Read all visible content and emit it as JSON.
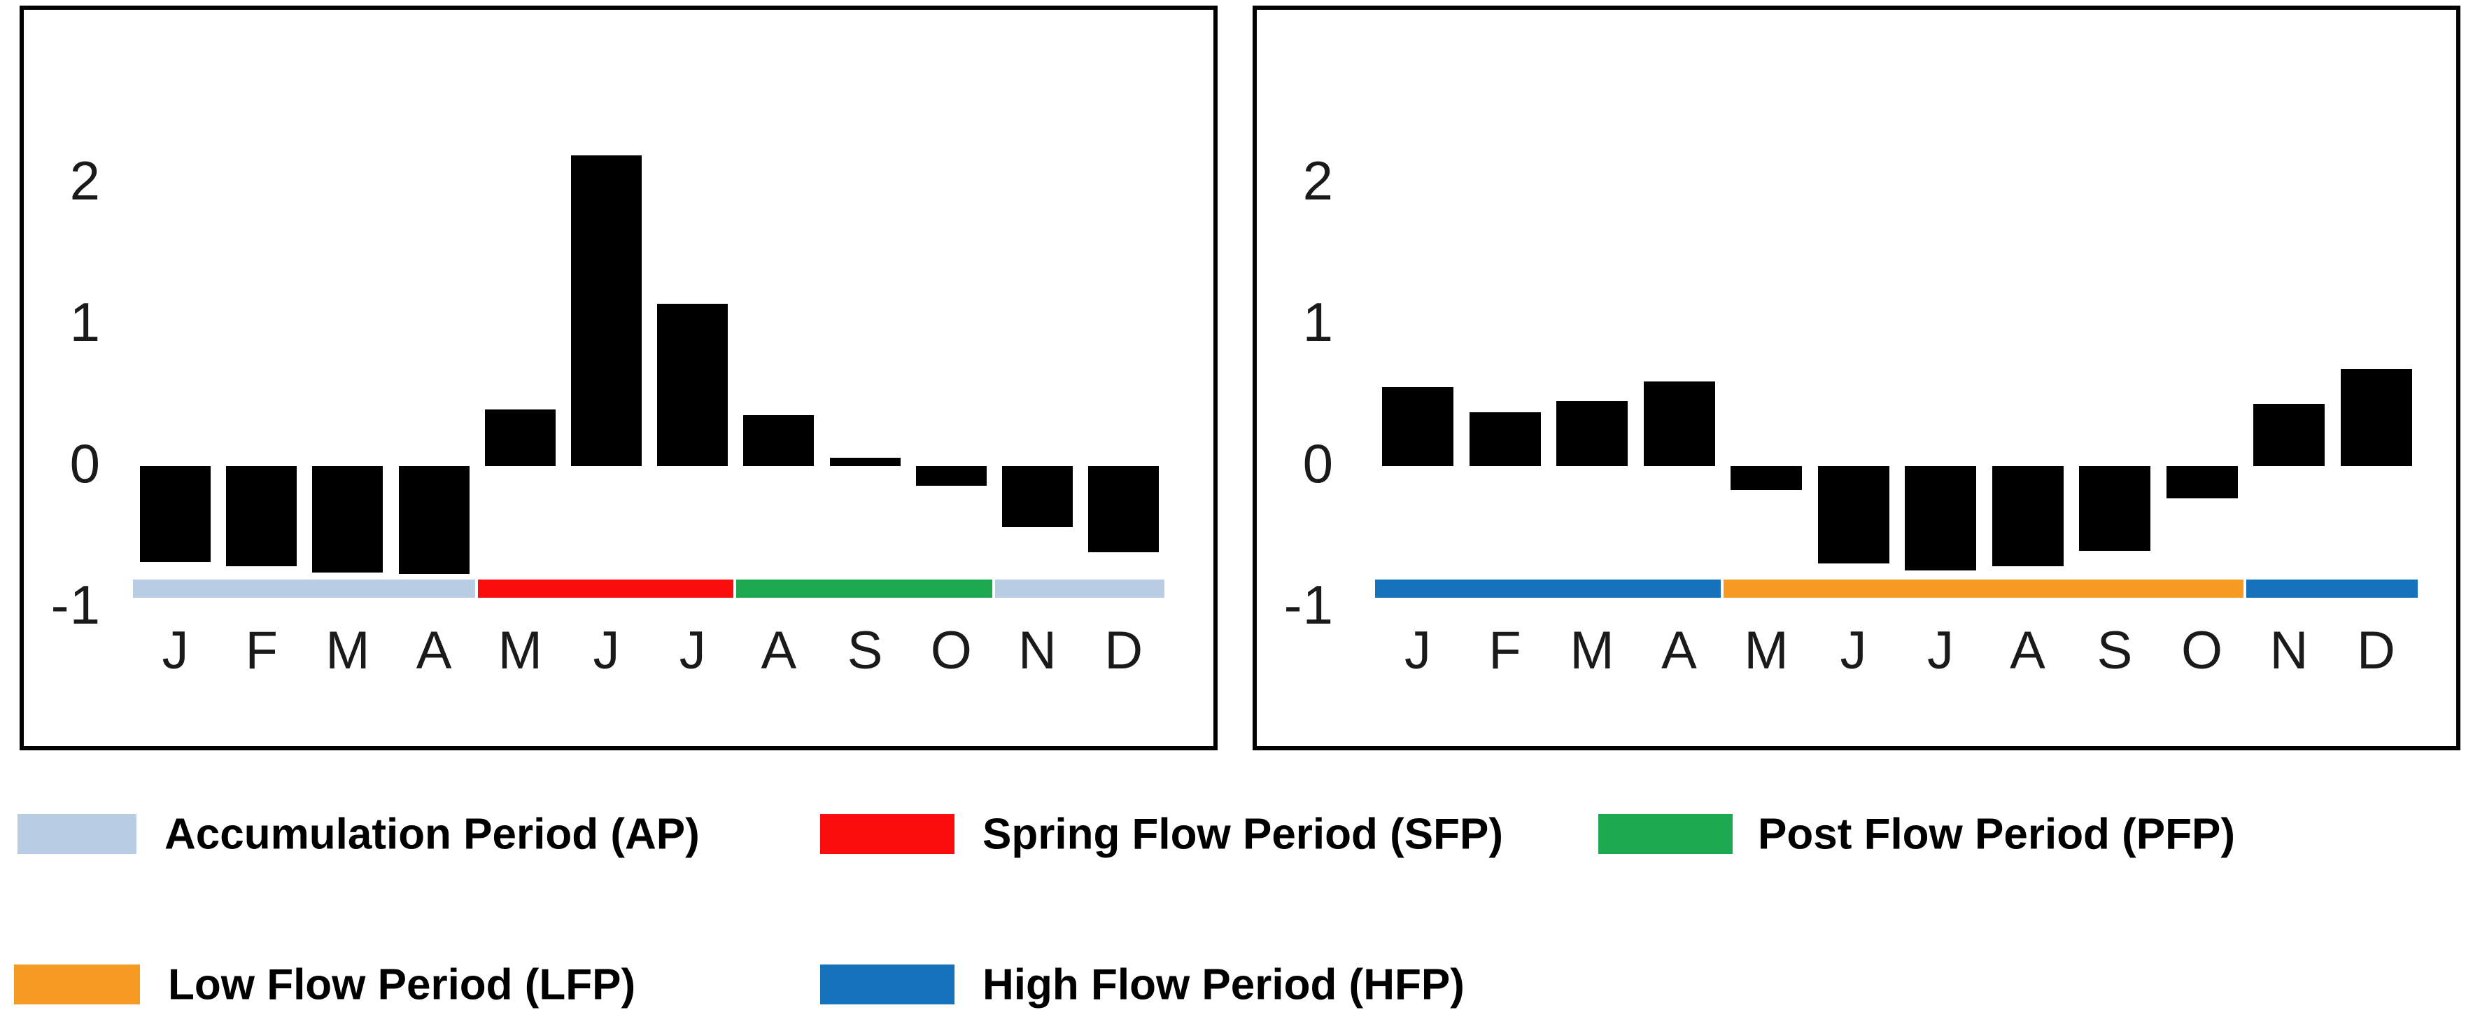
{
  "chart_data": [
    {
      "type": "bar",
      "title": "",
      "xlabel": "",
      "ylabel": "",
      "categories": [
        "J",
        "F",
        "M",
        "A",
        "M",
        "J",
        "J",
        "A",
        "S",
        "O",
        "N",
        "D"
      ],
      "values": [
        -0.68,
        -0.71,
        -0.75,
        -0.76,
        0.4,
        2.2,
        1.15,
        0.36,
        0.06,
        -0.14,
        -0.43,
        -0.61
      ],
      "yticks": [
        "2",
        "1",
        "0",
        "-1"
      ],
      "ytick_values": [
        2,
        1,
        0,
        -1
      ],
      "ylim": [
        -1,
        2.5
      ],
      "grid": false,
      "bar_color": "#000000",
      "periods": [
        {
          "label": "AP",
          "name": "Accumulation Period",
          "color": "#B8CCE4",
          "start_month": 0,
          "end_month": 3
        },
        {
          "label": "SFP",
          "name": "Spring Flow Period",
          "color": "#FC0D0D",
          "start_month": 4,
          "end_month": 6
        },
        {
          "label": "PFP",
          "name": "Post Flow Period",
          "color": "#1CA94F",
          "start_month": 7,
          "end_month": 9
        },
        {
          "label": "AP",
          "name": "Accumulation Period",
          "color": "#B8CCE4",
          "start_month": 10,
          "end_month": 11
        }
      ]
    },
    {
      "type": "bar",
      "title": "",
      "xlabel": "",
      "ylabel": "",
      "categories": [
        "J",
        "F",
        "M",
        "A",
        "M",
        "J",
        "J",
        "A",
        "S",
        "O",
        "N",
        "D"
      ],
      "values": [
        0.56,
        0.38,
        0.46,
        0.6,
        -0.17,
        -0.69,
        -0.74,
        -0.71,
        -0.6,
        -0.23,
        0.44,
        0.69
      ],
      "yticks": [
        "2",
        "1",
        "0",
        "-1"
      ],
      "ytick_values": [
        2,
        1,
        0,
        -1
      ],
      "ylim": [
        -1,
        2.5
      ],
      "grid": false,
      "bar_color": "#000000",
      "periods": [
        {
          "label": "HFP",
          "name": "High Flow Period",
          "color": "#1473BC",
          "start_month": 0,
          "end_month": 3
        },
        {
          "label": "LFP",
          "name": "Low Flow Period",
          "color": "#F59A23",
          "start_month": 4,
          "end_month": 9
        },
        {
          "label": "HFP",
          "name": "High Flow Period",
          "color": "#1473BC",
          "start_month": 10,
          "end_month": 11
        }
      ]
    }
  ],
  "legend": {
    "items": [
      {
        "label": "Accumulation Period (AP)",
        "color": "#B8CCE4"
      },
      {
        "label": "Spring Flow Period (SFP)",
        "color": "#FC0D0D"
      },
      {
        "label": "Post Flow Period (PFP)",
        "color": "#1CA94F"
      },
      {
        "label": "Low Flow Period (LFP)",
        "color": "#F59A23"
      },
      {
        "label": "High Flow Period (HFP)",
        "color": "#1473BC"
      }
    ]
  }
}
